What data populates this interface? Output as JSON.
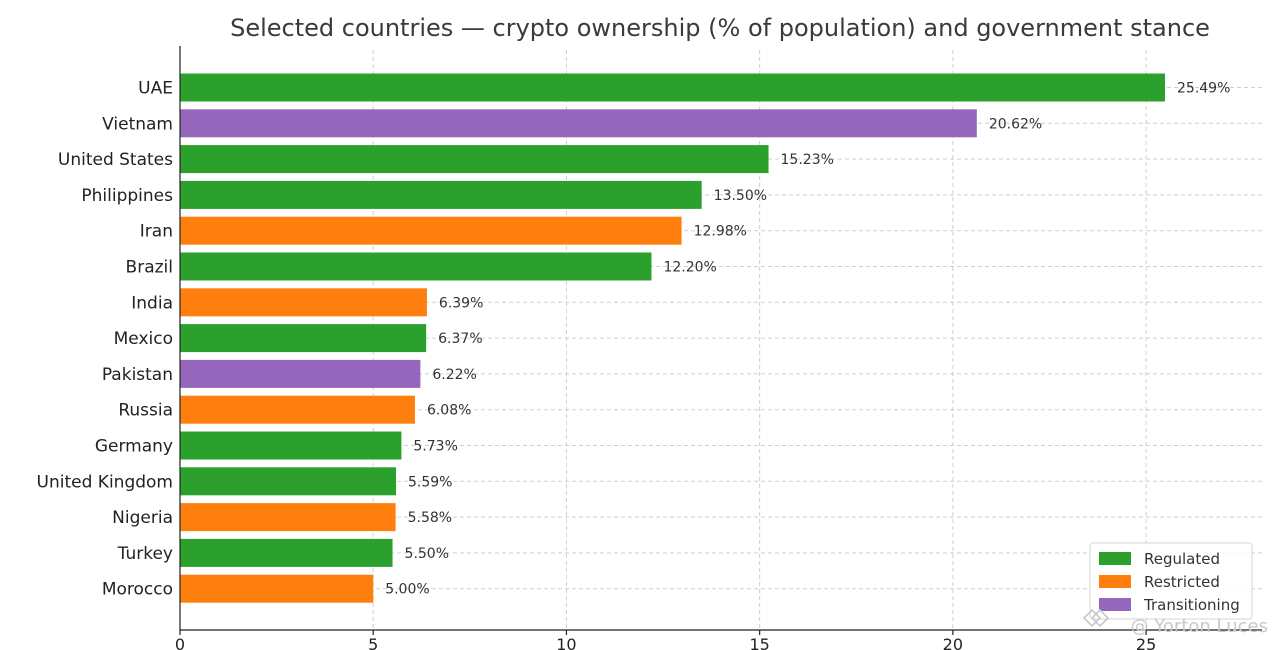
{
  "chart_data": {
    "type": "bar",
    "orientation": "horizontal",
    "title": "Selected countries — crypto ownership (% of population) and government stance",
    "xlabel": "",
    "ylabel": "",
    "xlim": [
      0,
      28
    ],
    "x_ticks": [
      0,
      5,
      10,
      15,
      20,
      25
    ],
    "grid": true,
    "legend_position": "bottom-right",
    "categories": [
      "UAE",
      "Vietnam",
      "United States",
      "Philippines",
      "Iran",
      "Brazil",
      "India",
      "Mexico",
      "Pakistan",
      "Russia",
      "Germany",
      "United Kingdom",
      "Nigeria",
      "Turkey",
      "Morocco"
    ],
    "values": [
      25.49,
      20.62,
      15.23,
      13.5,
      12.98,
      12.2,
      6.39,
      6.37,
      6.22,
      6.08,
      5.73,
      5.59,
      5.58,
      5.5,
      5.0
    ],
    "value_labels": [
      "25.49%",
      "20.62%",
      "15.23%",
      "13.50%",
      "12.98%",
      "12.20%",
      "6.39%",
      "6.37%",
      "6.22%",
      "6.08%",
      "5.73%",
      "5.59%",
      "5.58%",
      "5.50%",
      "5.00%"
    ],
    "stance": [
      "Regulated",
      "Transitioning",
      "Regulated",
      "Regulated",
      "Restricted",
      "Regulated",
      "Restricted",
      "Regulated",
      "Transitioning",
      "Restricted",
      "Regulated",
      "Regulated",
      "Restricted",
      "Regulated",
      "Restricted"
    ],
    "legend": [
      {
        "label": "Regulated",
        "color": "#2ca02c"
      },
      {
        "label": "Restricted",
        "color": "#ff7f0e"
      },
      {
        "label": "Transitioning",
        "color": "#9467bd"
      }
    ]
  },
  "watermark": {
    "text": "@ Yorton Luces",
    "icon": "diamond-logo-icon"
  }
}
